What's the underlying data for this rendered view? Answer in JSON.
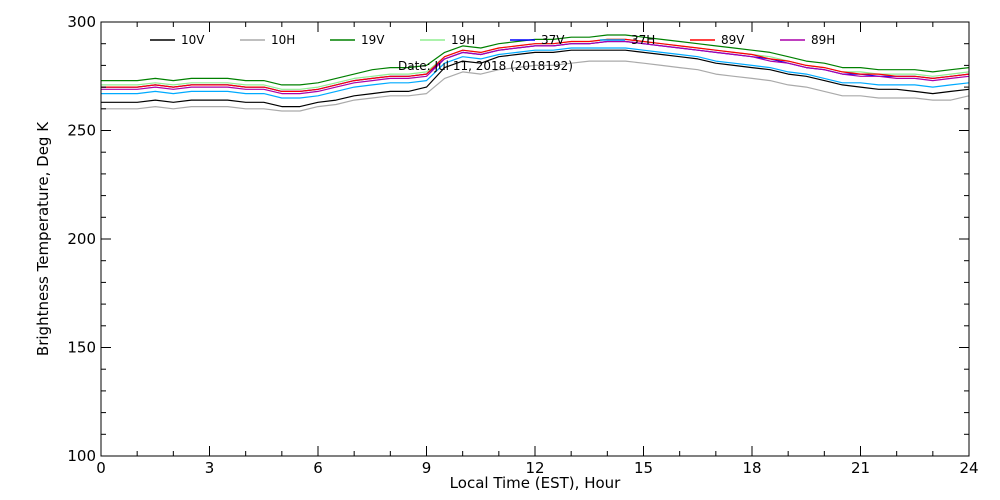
{
  "chart_data": {
    "type": "line",
    "xlabel": "Local Time (EST), Hour",
    "ylabel": "Brightness Temperature, Deg  K",
    "annotation": "Date: Jul 11, 2018 (2018192)",
    "xlim": [
      0,
      24
    ],
    "ylim": [
      100,
      300
    ],
    "x_major_ticks": [
      0,
      3,
      6,
      9,
      12,
      15,
      18,
      21,
      24
    ],
    "y_major_ticks": [
      100,
      150,
      200,
      250,
      300
    ],
    "x_minor_step": 1,
    "y_minor_step": 10,
    "grid": false,
    "legend_position": "top",
    "x": [
      0,
      0.5,
      1,
      1.5,
      2,
      2.5,
      3,
      3.5,
      4,
      4.5,
      5,
      5.5,
      6,
      6.5,
      7,
      7.5,
      8,
      8.5,
      9,
      9.5,
      10,
      10.5,
      11,
      11.5,
      12,
      12.5,
      13,
      13.5,
      14,
      14.5,
      15,
      15.5,
      16,
      16.5,
      17,
      17.5,
      18,
      18.5,
      19,
      19.5,
      20,
      20.5,
      21,
      21.5,
      22,
      22.5,
      23,
      23.5,
      24
    ],
    "series": [
      {
        "name": "10V",
        "color": "#000000",
        "values": [
          263,
          263,
          263,
          264,
          263,
          264,
          264,
          264,
          263,
          263,
          261,
          261,
          263,
          264,
          266,
          267,
          268,
          268,
          270,
          279,
          282,
          281,
          284,
          285,
          286,
          286,
          287,
          287,
          287,
          287,
          286,
          285,
          284,
          283,
          281,
          280,
          279,
          278,
          276,
          275,
          273,
          271,
          270,
          269,
          269,
          268,
          267,
          268,
          269
        ]
      },
      {
        "name": "10H",
        "color": "#aaaaaa",
        "values": [
          260,
          260,
          260,
          261,
          260,
          261,
          261,
          261,
          260,
          260,
          259,
          259,
          261,
          262,
          264,
          265,
          266,
          266,
          267,
          274,
          277,
          276,
          278,
          279,
          280,
          280,
          281,
          282,
          282,
          282,
          281,
          280,
          279,
          278,
          276,
          275,
          274,
          273,
          271,
          270,
          268,
          266,
          266,
          265,
          265,
          265,
          264,
          264,
          266
        ]
      },
      {
        "name": "19V",
        "color": "#008000",
        "values": [
          273,
          273,
          273,
          274,
          273,
          274,
          274,
          274,
          273,
          273,
          271,
          271,
          272,
          274,
          276,
          278,
          279,
          279,
          280,
          286,
          289,
          288,
          290,
          291,
          292,
          292,
          293,
          293,
          294,
          294,
          293,
          292,
          291,
          290,
          289,
          288,
          287,
          286,
          284,
          282,
          281,
          279,
          279,
          278,
          278,
          278,
          277,
          278,
          279
        ]
      },
      {
        "name": "19H",
        "color": "#90ee90",
        "values": [
          271,
          271,
          271,
          272,
          271,
          272,
          272,
          272,
          271,
          271,
          269,
          269,
          270,
          272,
          274,
          275,
          276,
          276,
          277,
          284,
          287,
          286,
          288,
          289,
          290,
          290,
          291,
          291,
          292,
          292,
          291,
          290,
          289,
          288,
          287,
          286,
          285,
          284,
          282,
          280,
          279,
          277,
          277,
          276,
          276,
          276,
          275,
          276,
          277
        ]
      },
      {
        "name": "37V",
        "color": "#0000ff",
        "values": [
          270,
          270,
          270,
          271,
          270,
          271,
          271,
          271,
          270,
          270,
          268,
          268,
          269,
          271,
          273,
          274,
          275,
          275,
          276,
          283,
          286,
          285,
          287,
          288,
          289,
          289,
          290,
          290,
          291,
          291,
          290,
          289,
          288,
          287,
          286,
          285,
          284,
          283,
          281,
          279,
          278,
          276,
          276,
          275,
          275,
          275,
          274,
          275,
          276
        ]
      },
      {
        "name": "37H",
        "color": "#00aaff",
        "values": [
          267,
          267,
          267,
          268,
          267,
          268,
          268,
          268,
          267,
          267,
          265,
          265,
          266,
          268,
          270,
          271,
          272,
          272,
          273,
          281,
          284,
          283,
          285,
          286,
          287,
          287,
          288,
          288,
          288,
          288,
          287,
          286,
          285,
          284,
          282,
          281,
          280,
          279,
          277,
          276,
          274,
          272,
          272,
          271,
          271,
          271,
          270,
          271,
          272
        ]
      },
      {
        "name": "89V",
        "color": "#ff0000",
        "values": [
          270,
          270,
          270,
          271,
          270,
          271,
          271,
          271,
          270,
          270,
          268,
          268,
          269,
          271,
          273,
          274,
          275,
          275,
          276,
          284,
          287,
          286,
          288,
          289,
          290,
          290,
          291,
          291,
          292,
          292,
          291,
          290,
          289,
          288,
          287,
          286,
          285,
          283,
          282,
          280,
          279,
          277,
          276,
          276,
          275,
          275,
          274,
          275,
          276
        ]
      },
      {
        "name": "89H",
        "color": "#aa00aa",
        "values": [
          269,
          269,
          269,
          270,
          269,
          270,
          270,
          270,
          269,
          269,
          267,
          267,
          268,
          270,
          272,
          273,
          274,
          274,
          275,
          283,
          286,
          285,
          287,
          288,
          289,
          289,
          290,
          290,
          291,
          291,
          290,
          289,
          288,
          287,
          286,
          285,
          284,
          282,
          281,
          279,
          278,
          276,
          275,
          275,
          274,
          274,
          273,
          274,
          275
        ]
      }
    ]
  }
}
